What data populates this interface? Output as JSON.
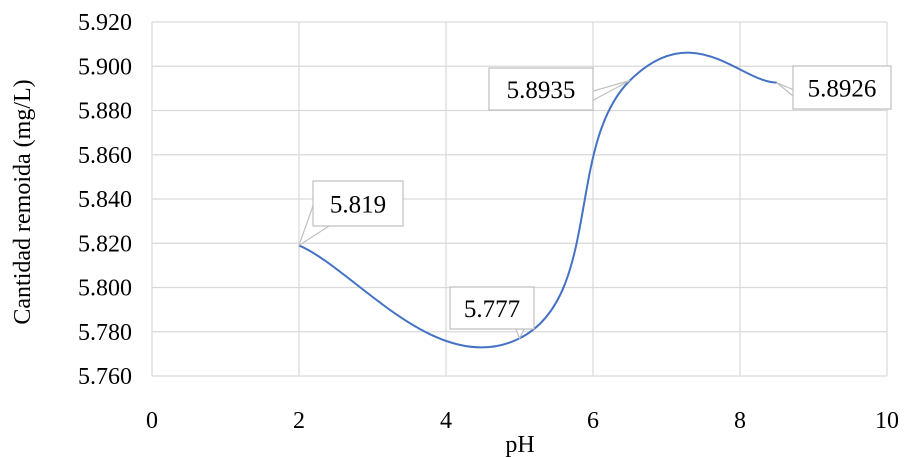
{
  "chart_data": {
    "type": "line",
    "xlabel": "pH",
    "ylabel": "Cantidad remoida (mg/L)",
    "xlim": [
      0,
      10
    ],
    "ylim": [
      5.76,
      5.92
    ],
    "x_ticks": [
      "0",
      "2",
      "4",
      "6",
      "8",
      "10"
    ],
    "y_ticks": [
      "5.760",
      "5.780",
      "5.800",
      "5.820",
      "5.840",
      "5.860",
      "5.880",
      "5.900",
      "5.920"
    ],
    "grid": "both",
    "line_color": "#4472c4",
    "series": [
      {
        "x": [
          2,
          5,
          6.5,
          8.5
        ],
        "values": [
          5.819,
          5.777,
          5.8935,
          5.8926
        ]
      }
    ],
    "data_labels": [
      "5.819",
      "5.777",
      "5.8935",
      "5.8926"
    ]
  }
}
